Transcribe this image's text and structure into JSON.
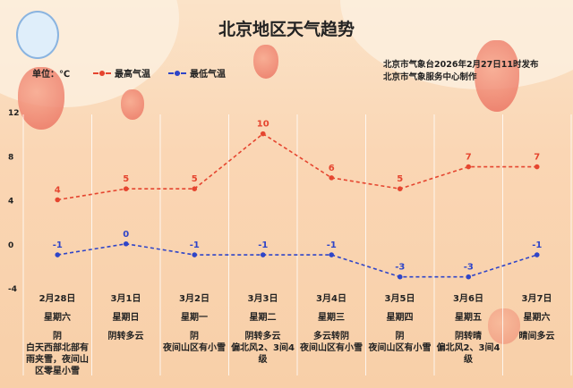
{
  "title": "北京地区天气趋势",
  "unit": "单位：℃",
  "issuer": [
    "北京市气象台2026年2月27日11时发布",
    "北京市气象服务中心制作"
  ],
  "colors": {
    "high": "#e5452f",
    "low": "#2f45c8"
  },
  "chart_data": {
    "type": "line",
    "ylim": [
      -4,
      12
    ],
    "yticks": [
      "12",
      "8",
      "4",
      "0",
      "-4"
    ],
    "yticks_values": [
      12,
      8,
      4,
      0,
      -4
    ],
    "legend_placement": "top-left",
    "grid": "vertical",
    "categories": [
      "2月28日",
      "3月1日",
      "3月2日",
      "3月3日",
      "3月4日",
      "3月5日",
      "3月6日",
      "3月7日"
    ],
    "weekdays": [
      "星期六",
      "星期日",
      "星期一",
      "星期二",
      "星期三",
      "星期四",
      "星期五",
      "星期六"
    ],
    "weather": [
      "阴",
      "阴转多云",
      "阴",
      "阴转多云",
      "多云转阴",
      "阴",
      "阴转晴",
      "晴间多云"
    ],
    "notes": [
      "白天西部北部有雨夹雪，夜间山区零星小雪",
      "",
      "夜间山区有小雪",
      "偏北风2、3间4级",
      "夜间山区有小雪",
      "夜间山区有小雪",
      "偏北风2、3间4级",
      ""
    ],
    "series": [
      {
        "name": "最高气温",
        "values": [
          4,
          5,
          5,
          10,
          6,
          5,
          7,
          7
        ],
        "labels": [
          "4",
          "5",
          "5",
          "10",
          "6",
          "5",
          "7",
          "7"
        ]
      },
      {
        "name": "最低气温",
        "values": [
          -1,
          0,
          -1,
          -1,
          -1,
          -3,
          -3,
          -1
        ],
        "labels": [
          "-1",
          "0",
          "-1",
          "-1",
          "-1",
          "-3",
          "-3",
          "-1"
        ]
      }
    ]
  }
}
